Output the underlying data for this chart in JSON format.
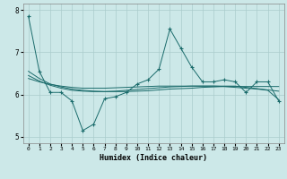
{
  "xlabel": "Humidex (Indice chaleur)",
  "background_color": "#cce8e8",
  "grid_color": "#aacccc",
  "line_color": "#1a6b6b",
  "x": [
    0,
    1,
    2,
    3,
    4,
    5,
    6,
    7,
    8,
    9,
    10,
    11,
    12,
    13,
    14,
    15,
    16,
    17,
    18,
    19,
    20,
    21,
    22,
    23
  ],
  "y_main": [
    7.85,
    6.55,
    6.05,
    6.05,
    5.85,
    5.15,
    5.3,
    5.9,
    5.95,
    6.05,
    6.25,
    6.35,
    6.6,
    7.55,
    7.1,
    6.65,
    6.3,
    6.3,
    6.35,
    6.3,
    6.05,
    6.3,
    6.3,
    5.85
  ],
  "y_trend1": [
    6.55,
    6.38,
    6.25,
    6.18,
    6.13,
    6.1,
    6.08,
    6.07,
    6.07,
    6.07,
    6.08,
    6.09,
    6.11,
    6.13,
    6.14,
    6.15,
    6.17,
    6.18,
    6.19,
    6.19,
    6.19,
    6.19,
    6.19,
    6.19
  ],
  "y_trend2": [
    6.45,
    6.32,
    6.22,
    6.15,
    6.1,
    6.08,
    6.07,
    6.07,
    6.08,
    6.1,
    6.12,
    6.14,
    6.16,
    6.18,
    6.19,
    6.2,
    6.2,
    6.2,
    6.2,
    6.2,
    6.17,
    6.14,
    6.11,
    6.08
  ],
  "y_trend3": [
    6.38,
    6.3,
    6.24,
    6.2,
    6.17,
    6.15,
    6.15,
    6.15,
    6.16,
    6.17,
    6.18,
    6.19,
    6.2,
    6.2,
    6.2,
    6.2,
    6.2,
    6.2,
    6.19,
    6.17,
    6.15,
    6.13,
    6.1,
    5.88
  ],
  "ylim": [
    4.85,
    8.15
  ],
  "xlim": [
    -0.5,
    23.5
  ],
  "yticks": [
    5,
    6,
    7,
    8
  ],
  "xticks": [
    0,
    1,
    2,
    3,
    4,
    5,
    6,
    7,
    8,
    9,
    10,
    11,
    12,
    13,
    14,
    15,
    16,
    17,
    18,
    19,
    20,
    21,
    22,
    23
  ]
}
